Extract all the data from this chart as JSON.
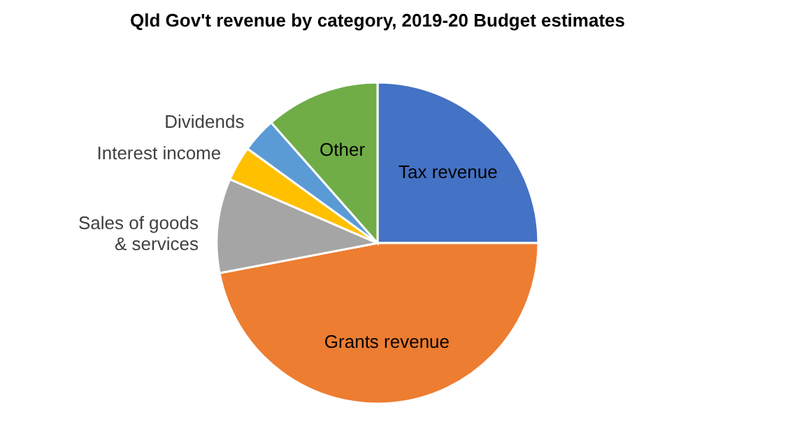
{
  "chart_data": {
    "type": "pie",
    "title": "Qld Gov't revenue by category, 2019-20 Budget estimates",
    "categories": [
      "Tax revenue",
      "Grants revenue",
      "Sales of goods & services",
      "Interest income",
      "Dividends",
      "Other"
    ],
    "values": [
      25,
      47,
      9.5,
      3.5,
      3.5,
      11.5
    ],
    "colors": [
      "#4472c4",
      "#ed7d31",
      "#a5a5a5",
      "#ffc000",
      "#5b9bd5",
      "#70ad47"
    ]
  }
}
